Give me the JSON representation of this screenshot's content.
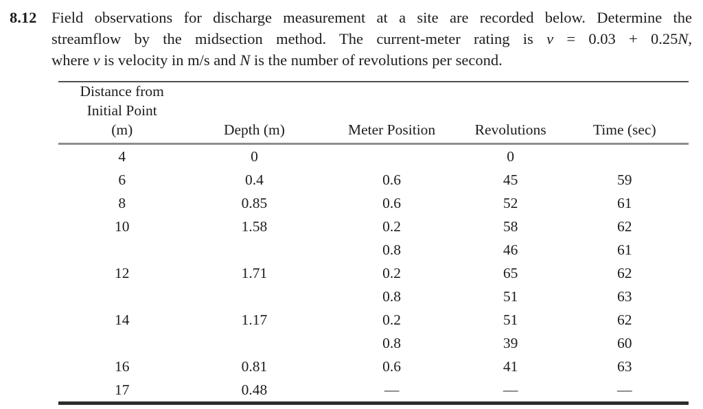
{
  "problem": {
    "number": "8.12",
    "line1": "Field observations for discharge measurement at a site are recorded below. Determine the",
    "line2_pre": "streamflow by the midsection method. The current-meter rating is ",
    "line2_v": "v",
    "line2_mid": " = 0.03 + 0.25",
    "line2_N": "N",
    "line2_end": ",",
    "line3_pre": "where ",
    "line3_v": "v",
    "line3_mid": " is velocity in m/s and ",
    "line3_N": "N",
    "line3_end": " is the number of revolutions per second."
  },
  "table": {
    "headers": {
      "distance_line1": "Distance from",
      "distance_line2": "Initial Point",
      "distance_line3": "(m)",
      "depth": "Depth (m)",
      "meter_position": "Meter Position",
      "revolutions": "Revolutions",
      "time": "Time (sec)"
    },
    "rows": [
      [
        "4",
        "0",
        "",
        "0",
        ""
      ],
      [
        "6",
        "0.4",
        "0.6",
        "45",
        "59"
      ],
      [
        "8",
        "0.85",
        "0.6",
        "52",
        "61"
      ],
      [
        "10",
        "1.58",
        "0.2",
        "58",
        "62"
      ],
      [
        "",
        "",
        "0.8",
        "46",
        "61"
      ],
      [
        "12",
        "1.71",
        "0.2",
        "65",
        "62"
      ],
      [
        "",
        "",
        "0.8",
        "51",
        "63"
      ],
      [
        "14",
        "1.17",
        "0.2",
        "51",
        "62"
      ],
      [
        "",
        "",
        "0.8",
        "39",
        "60"
      ],
      [
        "16",
        "0.81",
        "0.6",
        "41",
        "63"
      ],
      [
        "17",
        "0.48",
        "—",
        "—",
        "—"
      ]
    ]
  },
  "colors": {
    "text": "#1c1c1c",
    "top_rule": "#4f4f4f",
    "header_rule": "#8c8c8c",
    "bottom_rule": "#2d2d2d",
    "background": "#ffffff"
  }
}
